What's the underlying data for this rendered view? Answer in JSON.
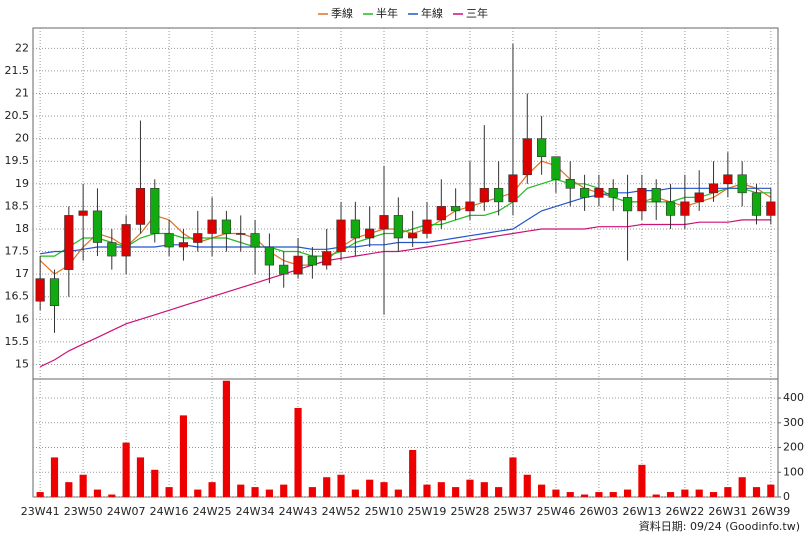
{
  "chart_data": {
    "type": "candlestick",
    "categories": [
      "23W41",
      null,
      null,
      "23W50",
      null,
      null,
      "24W07",
      null,
      null,
      "24W16",
      null,
      null,
      "24W25",
      null,
      null,
      "24W34",
      null,
      null,
      "24W43",
      null,
      null,
      "24W52",
      null,
      null,
      "25W10",
      null,
      null,
      "25W19",
      null,
      null,
      "25W28",
      null,
      null,
      "25W37",
      null,
      null,
      "25W46",
      null,
      null,
      "26W03",
      null,
      null,
      "26W13",
      null,
      null,
      "26W22",
      null,
      null,
      "26W31",
      null,
      null,
      "26W39"
    ],
    "open": [
      16.4,
      16.9,
      17.1,
      18.3,
      18.4,
      17.7,
      17.4,
      18.1,
      18.9,
      17.9,
      17.6,
      17.7,
      17.9,
      18.2,
      17.9,
      17.9,
      17.6,
      17.2,
      17.0,
      17.4,
      17.2,
      17.5,
      18.2,
      17.8,
      18.0,
      18.3,
      17.8,
      17.9,
      18.2,
      18.5,
      18.4,
      18.6,
      18.9,
      18.6,
      19.2,
      20.0,
      19.6,
      19.1,
      18.9,
      18.7,
      18.9,
      18.7,
      18.4,
      18.9,
      18.6,
      18.3,
      18.6,
      18.8,
      19.0,
      19.2,
      18.8,
      18.3
    ],
    "high": [
      17.4,
      17.1,
      18.5,
      19.0,
      18.9,
      18.0,
      18.3,
      20.4,
      19.1,
      18.2,
      18.0,
      18.4,
      18.7,
      18.4,
      18.3,
      18.2,
      17.9,
      17.5,
      17.8,
      17.6,
      18.0,
      18.6,
      18.6,
      18.5,
      19.4,
      18.7,
      18.4,
      18.6,
      19.1,
      18.9,
      19.5,
      20.3,
      19.5,
      22.1,
      21.0,
      20.5,
      19.6,
      19.5,
      19.2,
      19.2,
      19.1,
      19.2,
      19.2,
      19.1,
      19.0,
      19.2,
      19.3,
      19.5,
      19.7,
      19.5,
      19.0,
      18.9
    ],
    "low": [
      16.2,
      15.7,
      16.5,
      17.3,
      17.4,
      17.1,
      17.0,
      17.9,
      17.7,
      17.4,
      17.3,
      17.5,
      17.4,
      17.5,
      17.5,
      17.0,
      16.8,
      16.7,
      16.9,
      16.9,
      17.1,
      17.3,
      17.4,
      17.6,
      16.1,
      17.5,
      17.6,
      17.8,
      18.0,
      18.2,
      18.2,
      18.4,
      18.3,
      18.3,
      19.0,
      19.2,
      18.8,
      18.5,
      18.4,
      18.5,
      18.4,
      17.3,
      18.2,
      18.2,
      18.0,
      18.0,
      18.4,
      18.6,
      18.7,
      18.5,
      18.1,
      18.1
    ],
    "close": [
      16.9,
      16.3,
      18.3,
      18.4,
      17.7,
      17.4,
      18.1,
      18.9,
      17.9,
      17.6,
      17.7,
      17.9,
      18.2,
      17.9,
      17.9,
      17.6,
      17.2,
      17.0,
      17.4,
      17.2,
      17.5,
      18.2,
      17.8,
      18.0,
      18.3,
      17.8,
      17.9,
      18.2,
      18.5,
      18.4,
      18.6,
      18.9,
      18.6,
      19.2,
      20.0,
      19.6,
      19.1,
      18.9,
      18.7,
      18.9,
      18.7,
      18.4,
      18.9,
      18.6,
      18.3,
      18.6,
      18.8,
      19.0,
      19.2,
      18.8,
      18.3,
      18.6
    ],
    "up_color": "#dd0000",
    "down_color": "#11aa11",
    "volume": [
      20,
      160,
      60,
      90,
      30,
      10,
      220,
      160,
      110,
      40,
      330,
      30,
      60,
      470,
      50,
      40,
      30,
      50,
      360,
      40,
      80,
      90,
      30,
      70,
      60,
      30,
      190,
      50,
      60,
      40,
      70,
      60,
      40,
      160,
      90,
      50,
      30,
      20,
      10,
      20,
      20,
      30,
      130,
      10,
      20,
      30,
      30,
      20,
      40,
      80,
      40,
      50
    ],
    "volume_color": "#ee0000",
    "series": [
      {
        "name": "季線",
        "color": "#e07020",
        "values": [
          17.3,
          17.0,
          17.2,
          17.6,
          17.9,
          17.8,
          17.6,
          17.9,
          18.3,
          18.2,
          17.9,
          17.7,
          17.8,
          17.9,
          17.9,
          17.8,
          17.5,
          17.3,
          17.2,
          17.2,
          17.3,
          17.6,
          17.8,
          17.9,
          18.0,
          18.0,
          17.9,
          18.0,
          18.2,
          18.4,
          18.5,
          18.6,
          18.7,
          18.8,
          19.2,
          19.5,
          19.4,
          19.1,
          18.9,
          18.8,
          18.7,
          18.6,
          18.6,
          18.7,
          18.6,
          18.5,
          18.6,
          18.7,
          18.9,
          19.0,
          18.9,
          18.7
        ]
      },
      {
        "name": "半年",
        "color": "#22bb22",
        "values": [
          17.4,
          17.4,
          17.6,
          17.8,
          17.8,
          17.7,
          17.6,
          17.8,
          17.9,
          17.9,
          17.8,
          17.8,
          17.8,
          17.8,
          17.7,
          17.6,
          17.6,
          17.5,
          17.5,
          17.4,
          17.4,
          17.5,
          17.7,
          17.8,
          17.9,
          17.9,
          18.0,
          18.1,
          18.1,
          18.2,
          18.3,
          18.3,
          18.4,
          18.6,
          18.9,
          19.0,
          19.1,
          19.0,
          19.0,
          18.9,
          18.7,
          18.6,
          18.6,
          18.6,
          18.6,
          18.7,
          18.7,
          18.8,
          18.9,
          18.9,
          18.8,
          18.8
        ]
      },
      {
        "name": "年線",
        "color": "#2255cc",
        "values": [
          17.45,
          17.5,
          17.5,
          17.55,
          17.6,
          17.6,
          17.6,
          17.6,
          17.6,
          17.65,
          17.65,
          17.6,
          17.6,
          17.6,
          17.6,
          17.6,
          17.6,
          17.6,
          17.6,
          17.55,
          17.55,
          17.6,
          17.6,
          17.65,
          17.65,
          17.7,
          17.7,
          17.7,
          17.75,
          17.8,
          17.85,
          17.9,
          17.95,
          18.0,
          18.2,
          18.4,
          18.5,
          18.6,
          18.7,
          18.75,
          18.8,
          18.8,
          18.85,
          18.85,
          18.9,
          18.9,
          18.9,
          18.9,
          18.9,
          18.9,
          18.9,
          18.9
        ]
      },
      {
        "name": "三年",
        "color": "#cc1177",
        "values": [
          14.95,
          15.1,
          15.3,
          15.45,
          15.6,
          15.75,
          15.9,
          16.0,
          16.1,
          16.2,
          16.3,
          16.4,
          16.5,
          16.6,
          16.7,
          16.8,
          16.9,
          17.0,
          17.1,
          17.2,
          17.3,
          17.35,
          17.4,
          17.45,
          17.5,
          17.5,
          17.55,
          17.6,
          17.65,
          17.7,
          17.75,
          17.8,
          17.85,
          17.9,
          17.95,
          18.0,
          18.0,
          18.0,
          18.0,
          18.05,
          18.05,
          18.05,
          18.1,
          18.1,
          18.1,
          18.1,
          18.15,
          18.15,
          18.15,
          18.2,
          18.2,
          18.2
        ]
      }
    ],
    "ylim": [
      14.7,
      22.45
    ],
    "yticks": [
      15,
      15.5,
      16,
      16.5,
      17,
      17.5,
      18,
      18.5,
      19,
      19.5,
      20,
      20.5,
      21,
      21.5,
      22
    ],
    "y2lim": [
      0,
      473
    ],
    "y2ticks": [
      0,
      100,
      200,
      300,
      400
    ],
    "grid": true,
    "footer": "資料日期: 09/24 (Goodinfo.tw)"
  }
}
